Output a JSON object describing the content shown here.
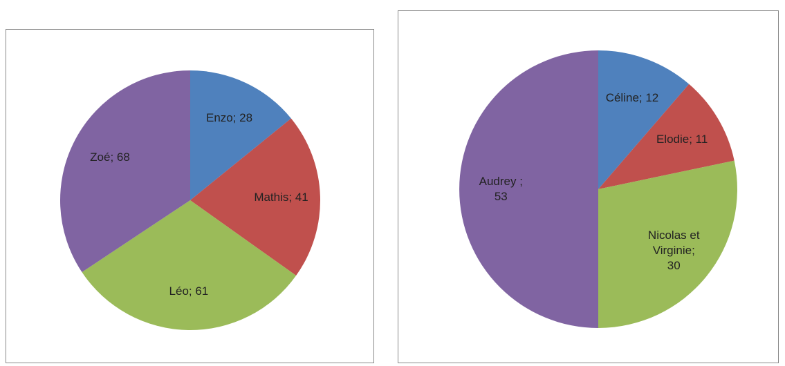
{
  "chart_data": [
    {
      "type": "pie",
      "values": [
        28,
        41,
        61,
        68
      ],
      "value_labels": [
        "Enzo; 28",
        "Mathis; 41",
        "Léo; 61",
        "Zoé; 68"
      ],
      "colors": [
        "#4f81bd",
        "#c0504d",
        "#9bbb59",
        "#8064a2"
      ]
    },
    {
      "type": "pie",
      "values": [
        12,
        11,
        30,
        53
      ],
      "value_labels": [
        "Céline; 12",
        "Elodie; 11",
        "Nicolas et Virginie; 30",
        "Audrey ; 53"
      ],
      "colors": [
        "#4f81bd",
        "#c0504d",
        "#9bbb59",
        "#8064a2"
      ]
    }
  ]
}
